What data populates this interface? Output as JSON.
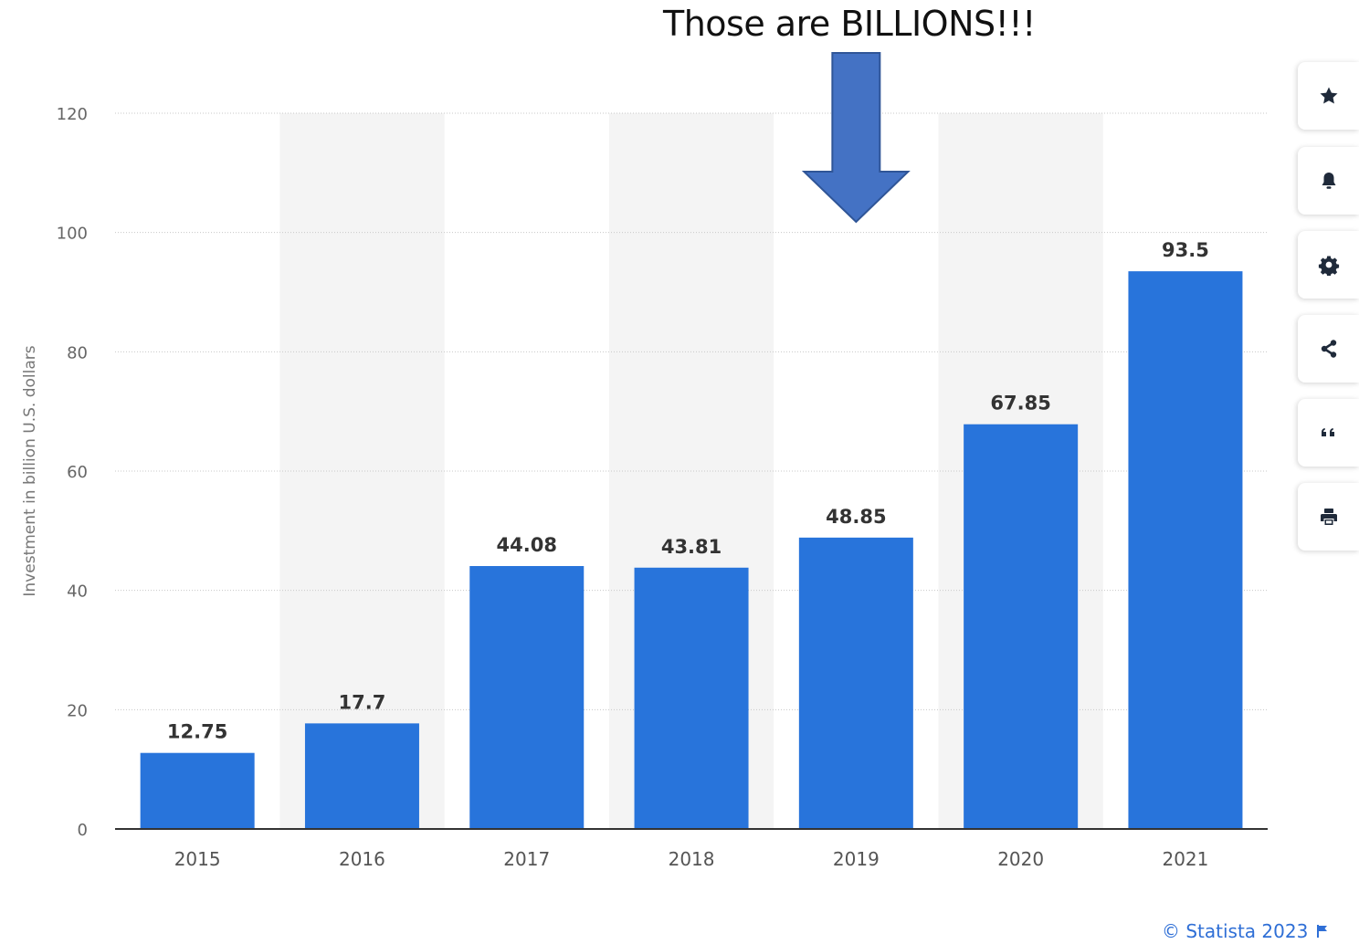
{
  "annotation": {
    "text": "Those are BILLIONS!!!",
    "arrow_color": "#4472c4",
    "arrow_outline": "#2f5597",
    "points_to_category": "2019"
  },
  "toolbar": {
    "items": [
      {
        "name": "star",
        "icon": "star-icon"
      },
      {
        "name": "notification",
        "icon": "bell-icon"
      },
      {
        "name": "settings",
        "icon": "gear-icon"
      },
      {
        "name": "share",
        "icon": "share-icon"
      },
      {
        "name": "cite",
        "icon": "quote-icon"
      },
      {
        "name": "print",
        "icon": "printer-icon"
      }
    ],
    "icon_color": "#1f2a3a"
  },
  "credit": {
    "text": "© Statista 2023",
    "icon": "flag-icon",
    "color": "#2f6fd6"
  },
  "chart_data": {
    "type": "bar",
    "categories": [
      "2015",
      "2016",
      "2017",
      "2018",
      "2019",
      "2020",
      "2021"
    ],
    "values": [
      12.75,
      17.7,
      44.08,
      43.81,
      48.85,
      67.85,
      93.5
    ],
    "data_labels": [
      "12.75",
      "17.7",
      "44.08",
      "43.81",
      "48.85",
      "67.85",
      "93.5"
    ],
    "title": "",
    "xlabel": "",
    "ylabel": "Investment in billion U.S. dollars",
    "ylim": [
      0,
      120
    ],
    "yticks": [
      "0",
      "20",
      "40",
      "60",
      "80",
      "100",
      "120"
    ],
    "grid": true,
    "bar_color": "#2874db",
    "alternate_band_color": "#f4f4f4"
  }
}
